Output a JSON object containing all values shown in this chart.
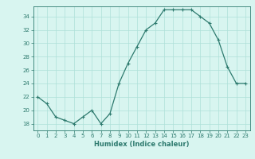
{
  "x": [
    0,
    1,
    2,
    3,
    4,
    5,
    6,
    7,
    8,
    9,
    10,
    11,
    12,
    13,
    14,
    15,
    16,
    17,
    18,
    19,
    20,
    21,
    22,
    23
  ],
  "y": [
    22,
    21,
    19,
    18.5,
    18,
    19,
    20,
    18,
    19.5,
    24,
    27,
    29.5,
    32,
    33,
    35,
    35,
    35,
    35,
    34,
    33,
    30.5,
    26.5,
    24,
    24
  ],
  "line_color": "#2d7a6e",
  "marker": "+",
  "marker_size": 3,
  "bg_color": "#d8f5f0",
  "grid_color": "#aee0d8",
  "xlabel": "Humidex (Indice chaleur)",
  "xlim": [
    -0.5,
    23.5
  ],
  "ylim": [
    17,
    35.5
  ],
  "yticks": [
    18,
    20,
    22,
    24,
    26,
    28,
    30,
    32,
    34
  ],
  "xticks": [
    0,
    1,
    2,
    3,
    4,
    5,
    6,
    7,
    8,
    9,
    10,
    11,
    12,
    13,
    14,
    15,
    16,
    17,
    18,
    19,
    20,
    21,
    22,
    23
  ],
  "tick_color": "#2d7a6e",
  "label_fontsize": 6,
  "tick_fontsize": 5,
  "linewidth": 0.9,
  "markeredgewidth": 0.8
}
